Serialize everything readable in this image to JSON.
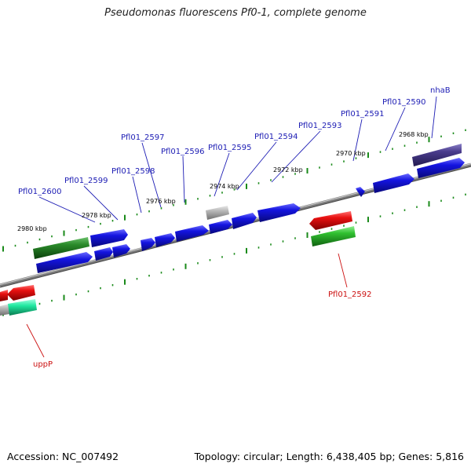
{
  "title": "Pseudomonas fluorescens Pf0-1, complete genome",
  "accession": "Accession: NC_007492",
  "summary": "Topology: circular; Length: 6,438,405 bp; Genes: 5,816",
  "colors": {
    "backbone": "#8a8a8a",
    "tick": "#1a8a1a",
    "forward_label": "#1c1cb4",
    "reverse_label": "#cc1111",
    "gene_blue": "#1414e0",
    "gene_red": "#e81010",
    "gene_green": "#30c030",
    "gene_darkgreen": "#2a8a2a",
    "gene_purple": "#4a3c8c",
    "gene_grey": "#b0b0b0",
    "gene_cyan": "#20e8a0"
  },
  "ruler_labels": [
    "2968 kbp",
    "2970 kbp",
    "2972 kbp",
    "2974 kbp",
    "2976 kbp",
    "2978 kbp",
    "2980 kbp"
  ],
  "gene_labels": [
    {
      "text": "nhaB",
      "strand": "forward"
    },
    {
      "text": "Pfl01_2590",
      "strand": "forward"
    },
    {
      "text": "Pfl01_2591",
      "strand": "forward"
    },
    {
      "text": "Pfl01_2593",
      "strand": "forward"
    },
    {
      "text": "Pfl01_2594",
      "strand": "forward"
    },
    {
      "text": "Pfl01_2595",
      "strand": "forward"
    },
    {
      "text": "Pfl01_2596",
      "strand": "forward"
    },
    {
      "text": "Pfl01_2597",
      "strand": "forward"
    },
    {
      "text": "Pfl01_2598",
      "strand": "forward"
    },
    {
      "text": "Pfl01_2599",
      "strand": "forward"
    },
    {
      "text": "Pfl01_2600",
      "strand": "forward"
    },
    {
      "text": "Pfl01_2592",
      "strand": "reverse"
    },
    {
      "text": "uppP",
      "strand": "reverse"
    }
  ]
}
